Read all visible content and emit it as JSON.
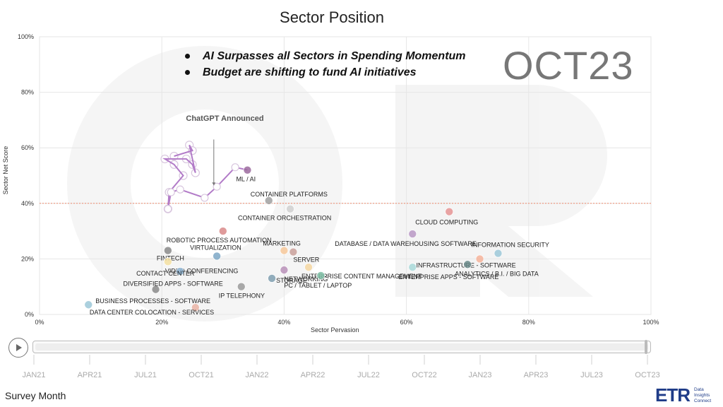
{
  "title": "Sector Position",
  "bullets": [
    "AI Surpasses all Sectors in Spending Momentum",
    "Budget are shifting to fund AI initiatives"
  ],
  "month_stamp": "OCT23",
  "colors": {
    "reference_line": "#ef8b6e",
    "trail": "#b27bc8",
    "grid": "#e6e6e6"
  },
  "chart_data": {
    "type": "scatter",
    "title": "Sector Position",
    "xlabel": "Sector Pervasion",
    "ylabel": "Sector Net Score",
    "xlim": [
      0,
      100
    ],
    "ylim": [
      0,
      100
    ],
    "x_ticks": [
      "0%",
      "20%",
      "40%",
      "60%",
      "80%",
      "100%"
    ],
    "y_ticks": [
      "0%",
      "20%",
      "40%",
      "60%",
      "80%",
      "100%"
    ],
    "reference_line_y": 40,
    "grid": true,
    "annotation": "ChatGPT Announced",
    "points": [
      {
        "label": "ML / AI",
        "x": 34,
        "y": 52,
        "color": "#9b6a9e"
      },
      {
        "label": "CLOUD COMPUTING",
        "x": 67,
        "y": 37,
        "color": "#e59494"
      },
      {
        "label": "CONTAINER PLATFORMS",
        "x": 37.5,
        "y": 41,
        "color": "#a0a0a0"
      },
      {
        "label": "CONTAINER ORCHESTRATION",
        "x": 41,
        "y": 38,
        "color": "#d0d0d0"
      },
      {
        "label": "ROBOTIC PROCESS AUTOMATION",
        "x": 30,
        "y": 30,
        "color": "#d98a8a"
      },
      {
        "label": "DATABASE / DATA WAREHOUSING SOFTWARE",
        "x": 61,
        "y": 29,
        "color": "#b898c4"
      },
      {
        "label": "MARKETING",
        "x": 40,
        "y": 23,
        "color": "#f7c89a"
      },
      {
        "label": "INFRASTRUCTURE - SOFTWARE",
        "x": 72,
        "y": 20,
        "color": "#f5b39a"
      },
      {
        "label": "INFORMATION SECURITY",
        "x": 75,
        "y": 22,
        "color": "#9cc8d8"
      },
      {
        "label": "SERVER",
        "x": 41.5,
        "y": 22.5,
        "color": "#c9a09a"
      },
      {
        "label": "FINTECH",
        "x": 21,
        "y": 23,
        "color": "#8a8a8a"
      },
      {
        "label": "VIRTUALIZATION",
        "x": 29,
        "y": 21,
        "color": "#7da7c6"
      },
      {
        "label": "VIDEO CONFERENCING",
        "x": 21,
        "y": 19,
        "color": "#f3dfa0"
      },
      {
        "label": "ANALYTICS / B.I. / BIG DATA",
        "x": 70,
        "y": 18,
        "color": "#6a8a8a"
      },
      {
        "label": "ENTERPRISE CONTENT MANAGEMENT",
        "x": 44,
        "y": 17,
        "color": "#f5d6a0"
      },
      {
        "label": "ENTERPRISE APPS - SOFTWARE",
        "x": 61,
        "y": 17,
        "color": "#a8d8d8"
      },
      {
        "label": "CONTACT CENTER",
        "x": 23,
        "y": 15.5,
        "color": "#8fb6d6"
      },
      {
        "label": "NETWORKING",
        "x": 40,
        "y": 16,
        "color": "#b890b8"
      },
      {
        "label": "DIVERSIFIED APPS - SOFTWARE",
        "x": 19,
        "y": 9,
        "color": "#8a8a8a"
      },
      {
        "label": "PC / TABLET / LAPTOP",
        "x": 46,
        "y": 14,
        "color": "#7fbfa6"
      },
      {
        "label": "STORAGE",
        "x": 38,
        "y": 13,
        "color": "#7f9fb0"
      },
      {
        "label": "IP TELEPHONY",
        "x": 33,
        "y": 10,
        "color": "#9a9a9a"
      },
      {
        "label": "BUSINESS PROCESSES - SOFTWARE",
        "x": 8,
        "y": 3.5,
        "color": "#9cc8d8"
      },
      {
        "label": "DATA CENTER COLOCATION - SERVICES",
        "x": 25.5,
        "y": 2.5,
        "color": "#e9b3a4"
      }
    ],
    "trail": [
      {
        "x": 21,
        "y": 38
      },
      {
        "x": 21.5,
        "y": 44
      },
      {
        "x": 23,
        "y": 45
      },
      {
        "x": 27,
        "y": 42
      },
      {
        "x": 29,
        "y": 46
      },
      {
        "x": 32,
        "y": 53
      },
      {
        "x": 34,
        "y": 52
      }
    ],
    "trail_history": [
      {
        "x": 21,
        "y": 38
      },
      {
        "x": 21.2,
        "y": 44
      },
      {
        "x": 23.5,
        "y": 50
      },
      {
        "x": 22,
        "y": 54
      },
      {
        "x": 20.5,
        "y": 56
      },
      {
        "x": 24,
        "y": 56
      },
      {
        "x": 25,
        "y": 54
      },
      {
        "x": 25.5,
        "y": 51
      },
      {
        "x": 24.5,
        "y": 61
      },
      {
        "x": 25,
        "y": 59
      },
      {
        "x": 22,
        "y": 57
      }
    ]
  },
  "timeline": {
    "ticks": [
      "JAN21",
      "APR21",
      "JUL21",
      "OCT21",
      "JAN22",
      "APR22",
      "JUL22",
      "OCT22",
      "JAN23",
      "APR23",
      "JUL23",
      "OCT23"
    ],
    "progress": 1.0
  },
  "survey_label": "Survey Month",
  "logo": {
    "mark": "ETR",
    "sub": [
      "Data",
      "Insights",
      "Connect"
    ]
  }
}
